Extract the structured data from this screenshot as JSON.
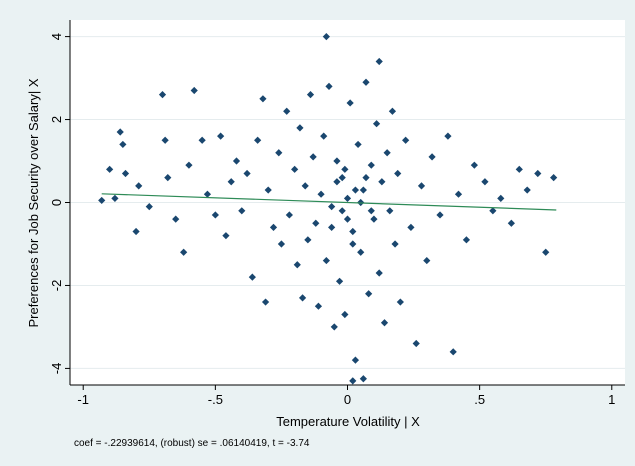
{
  "chart_data": {
    "type": "scatter",
    "xlabel": "Temperature Volatility | X",
    "ylabel": "Preferences for Job Security over Salary| X",
    "note": "coef = -.22939614, (robust) se = .06140419, t = -3.74",
    "xlim": [
      -1.05,
      1.05
    ],
    "ylim": [
      -4.4,
      4.4
    ],
    "xticks": [
      -1,
      {
        "value": -0.5,
        "label": "-.5"
      },
      0,
      {
        "value": 0.5,
        "label": ".5"
      },
      1
    ],
    "yticks": [
      -4,
      -2,
      0,
      2,
      4
    ],
    "grid": true,
    "series": [
      {
        "type": "scatter",
        "color": "#1a476f",
        "x": [
          -0.93,
          -0.9,
          -0.88,
          -0.86,
          -0.85,
          -0.84,
          -0.8,
          -0.79,
          -0.75,
          -0.7,
          -0.69,
          -0.68,
          -0.65,
          -0.62,
          -0.6,
          -0.58,
          -0.55,
          -0.53,
          -0.5,
          -0.48,
          -0.46,
          -0.44,
          -0.42,
          -0.4,
          -0.38,
          -0.36,
          -0.34,
          -0.32,
          -0.31,
          -0.3,
          -0.28,
          -0.26,
          -0.25,
          -0.23,
          -0.22,
          -0.2,
          -0.19,
          -0.18,
          -0.17,
          -0.16,
          -0.15,
          -0.14,
          -0.13,
          -0.12,
          -0.11,
          -0.1,
          -0.09,
          -0.08,
          -0.07,
          -0.06,
          -0.05,
          -0.04,
          -0.03,
          -0.02,
          -0.01,
          0,
          0.01,
          0.02,
          0.03,
          0.04,
          0.05,
          0.06,
          0.07,
          0.08,
          0.09,
          0.1,
          0.11,
          0.12,
          0.13,
          0.14,
          0.15,
          0.16,
          0.17,
          0.18,
          0.19,
          0.2,
          0.22,
          0.24,
          0.26,
          0.28,
          0.3,
          0.32,
          0.35,
          0.38,
          0.4,
          0.42,
          0.45,
          0.48,
          0.52,
          0.55,
          0.58,
          0.62,
          0.65,
          0.68,
          0.72,
          0.75,
          0.78,
          -0.08,
          0.02,
          0.12,
          0.06,
          -0.02,
          0,
          0.03,
          -0.04,
          0.05,
          -0.01,
          0.02,
          0.07,
          -0.06,
          0.09
        ],
        "values": [
          0.05,
          0.8,
          0.1,
          1.7,
          1.4,
          0.7,
          -0.7,
          0.4,
          -0.1,
          2.6,
          1.5,
          0.6,
          -0.4,
          -1.2,
          0.9,
          2.7,
          1.5,
          0.2,
          -0.3,
          1.6,
          -0.8,
          0.5,
          1.0,
          -0.2,
          0.7,
          -1.8,
          1.5,
          2.5,
          -2.4,
          0.3,
          -0.6,
          1.2,
          -1.0,
          2.2,
          -0.3,
          0.8,
          -1.5,
          1.8,
          -2.3,
          0.4,
          -0.9,
          2.6,
          1.1,
          -0.5,
          -2.5,
          0.2,
          1.6,
          -1.4,
          2.8,
          -0.1,
          -3.0,
          1.0,
          -1.9,
          0.6,
          -2.7,
          0.1,
          2.4,
          -0.7,
          -3.8,
          1.4,
          -1.2,
          0.3,
          2.9,
          -2.2,
          0.9,
          -0.4,
          1.9,
          -1.7,
          0.5,
          -2.9,
          1.2,
          -0.2,
          2.2,
          -1.0,
          0.7,
          -2.4,
          1.5,
          -0.6,
          -3.4,
          0.4,
          -1.4,
          1.1,
          -0.3,
          1.6,
          -3.6,
          0.2,
          -0.9,
          0.9,
          0.5,
          -0.2,
          0.1,
          -0.5,
          0.8,
          0.3,
          0.7,
          -1.2,
          0.6,
          4.0,
          -4.3,
          3.4,
          -4.25,
          -0.2,
          -0.4,
          0.3,
          0.5,
          0.0,
          0.8,
          -1.0,
          0.6,
          -0.6,
          -0.2
        ]
      },
      {
        "type": "line",
        "color": "#2e8b57",
        "x": [
          -0.93,
          0.79
        ],
        "values": [
          0.21,
          -0.18
        ]
      }
    ]
  }
}
